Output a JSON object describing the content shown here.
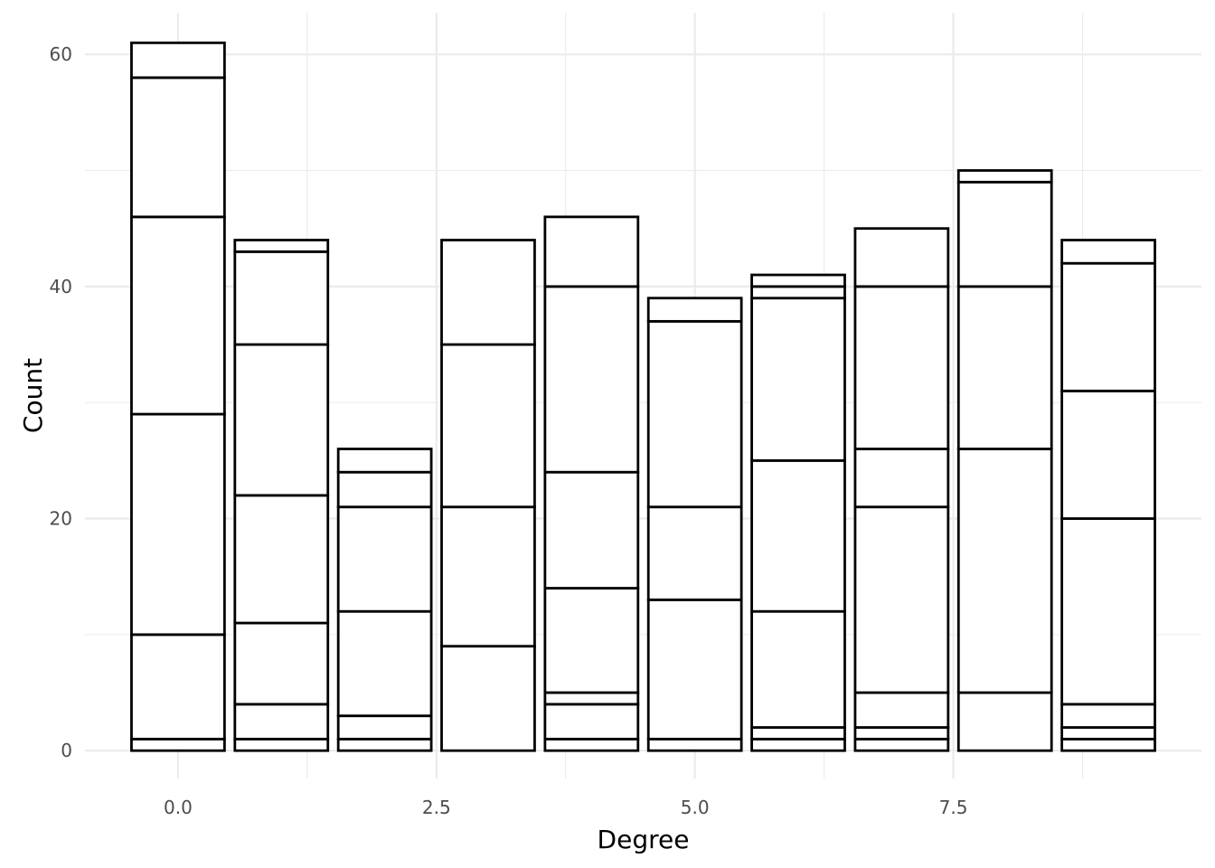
{
  "chart_data": {
    "type": "bar",
    "stacked": true,
    "title": "",
    "xlabel": "Degree",
    "ylabel": "Count",
    "x": [
      0,
      1,
      2,
      3,
      4,
      5,
      6,
      7,
      8,
      9
    ],
    "segments": [
      [
        1,
        9,
        19,
        17,
        12,
        3
      ],
      [
        1,
        3,
        7,
        11,
        13,
        8,
        1
      ],
      [
        1,
        2,
        9,
        9,
        3,
        2
      ],
      [
        9,
        12,
        14,
        9
      ],
      [
        1,
        3,
        1,
        9,
        10,
        16,
        6
      ],
      [
        1,
        12,
        8,
        16,
        2
      ],
      [
        1,
        1,
        10,
        13,
        14,
        1,
        1
      ],
      [
        1,
        1,
        3,
        16,
        5,
        14,
        5
      ],
      [
        5,
        21,
        14,
        9,
        1
      ],
      [
        1,
        1,
        2,
        16,
        11,
        11,
        2
      ]
    ],
    "totals": [
      61,
      44,
      26,
      44,
      46,
      39,
      41,
      45,
      50,
      44
    ],
    "xlim": [
      -0.9,
      9.9
    ],
    "ylim": [
      -2.4,
      63.6
    ],
    "x_ticks": [
      "0.0",
      "2.5",
      "5.0",
      "7.5"
    ],
    "x_tick_values": [
      0,
      2.5,
      5,
      7.5
    ],
    "y_ticks": [
      "0",
      "20",
      "40",
      "60"
    ],
    "y_tick_values": [
      0,
      20,
      40,
      60
    ],
    "grid": true,
    "colors": {
      "bar_fill": "#ffffff",
      "bar_outline": "#000000",
      "grid": "#ebebeb"
    }
  }
}
